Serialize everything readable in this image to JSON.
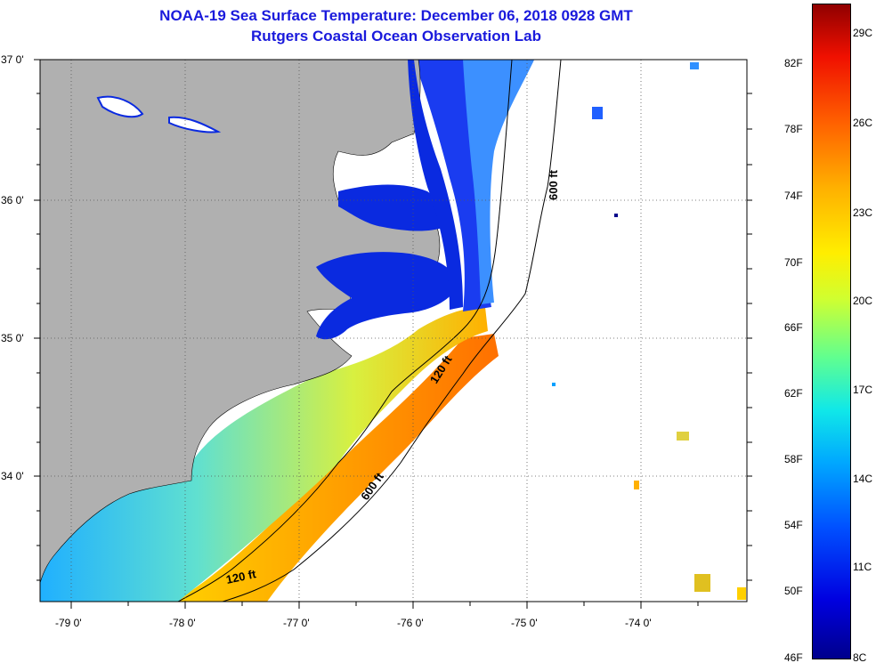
{
  "title": "NOAA-19 Sea Surface Temperature:  December 06, 2018 0928 GMT",
  "subtitle": "Rutgers Coastal Ocean Observation Lab",
  "lat_labels": [
    "37 0'",
    "36 0'",
    "35 0'",
    "34 0'"
  ],
  "lon_labels": [
    "-79 0'",
    "-78 0'",
    "-77 0'",
    "-76 0'",
    "-75 0'",
    "-74 0'"
  ],
  "contours": {
    "shelf_120": "120 ft",
    "slope_600": "600 ft"
  },
  "colorbar": {
    "fahrenheit": [
      "82F",
      "78F",
      "74F",
      "70F",
      "66F",
      "62F",
      "58F",
      "54F",
      "50F",
      "46F"
    ],
    "celsius": [
      "29C",
      "26C",
      "23C",
      "20C",
      "17C",
      "14C",
      "11C",
      "8C"
    ],
    "min_color": "#00008c",
    "max_color": "#900000"
  },
  "colors": {
    "title": "#1a1adc",
    "land": "#b0b0b0",
    "sound_water": "#0a2ae0"
  }
}
